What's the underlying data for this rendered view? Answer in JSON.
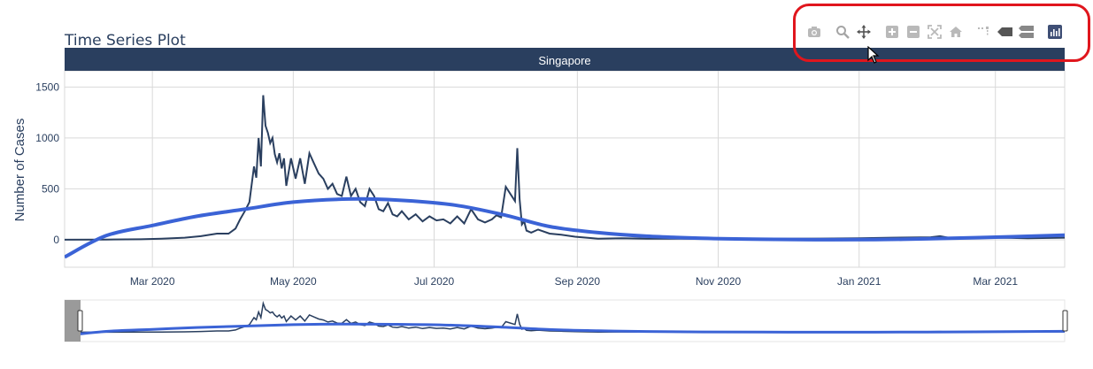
{
  "title": "Time Series Plot",
  "facet_label": "Singapore",
  "colors": {
    "line": "#2a3f5f",
    "trend": "#3b63d6",
    "strip_bg": "#2a3f5f",
    "grid": "#d9d9d9",
    "highlight": "#e0161d"
  },
  "modebar": {
    "buttons": [
      {
        "name": "camera-icon"
      },
      {
        "name": "zoom-icon"
      },
      {
        "name": "pan-icon"
      },
      {
        "name": "zoom-in-icon"
      },
      {
        "name": "zoom-out-icon"
      },
      {
        "name": "autoscale-icon"
      },
      {
        "name": "home-icon"
      },
      {
        "name": "spike-lines-icon"
      },
      {
        "name": "hover-closest-icon"
      },
      {
        "name": "hover-compare-icon"
      },
      {
        "name": "plotly-logo-icon"
      }
    ]
  },
  "chart_data": {
    "type": "line",
    "title": "Time Series Plot",
    "xlabel": "",
    "ylabel": "Number of Cases",
    "xlim": [
      "2020-01-23",
      "2021-03-31"
    ],
    "ylim": [
      -270,
      1660
    ],
    "x_ticks": [
      {
        "date": "2020-03-01",
        "label": "Mar 2020"
      },
      {
        "date": "2020-05-01",
        "label": "May 2020"
      },
      {
        "date": "2020-07-01",
        "label": "Jul 2020"
      },
      {
        "date": "2020-09-01",
        "label": "Sep 2020"
      },
      {
        "date": "2020-11-01",
        "label": "Nov 2020"
      },
      {
        "date": "2021-01-01",
        "label": "Jan 2021"
      },
      {
        "date": "2021-03-01",
        "label": "Mar 2021"
      }
    ],
    "y_ticks": [
      0,
      500,
      1000,
      1500
    ],
    "grid": true,
    "range_slider": true,
    "series": [
      {
        "kind": "observed",
        "x": [
          "2020-01-23",
          "2020-02-10",
          "2020-02-25",
          "2020-03-05",
          "2020-03-15",
          "2020-03-22",
          "2020-03-29",
          "2020-04-03",
          "2020-04-06",
          "2020-04-08",
          "2020-04-10",
          "2020-04-12",
          "2020-04-14",
          "2020-04-15",
          "2020-04-16",
          "2020-04-17",
          "2020-04-18",
          "2020-04-19",
          "2020-04-20",
          "2020-04-21",
          "2020-04-22",
          "2020-04-23",
          "2020-04-24",
          "2020-04-25",
          "2020-04-26",
          "2020-04-27",
          "2020-04-28",
          "2020-04-30",
          "2020-05-02",
          "2020-05-04",
          "2020-05-06",
          "2020-05-08",
          "2020-05-10",
          "2020-05-12",
          "2020-05-14",
          "2020-05-16",
          "2020-05-18",
          "2020-05-20",
          "2020-05-22",
          "2020-05-24",
          "2020-05-26",
          "2020-05-28",
          "2020-05-30",
          "2020-06-01",
          "2020-06-03",
          "2020-06-05",
          "2020-06-07",
          "2020-06-09",
          "2020-06-11",
          "2020-06-13",
          "2020-06-15",
          "2020-06-17",
          "2020-06-20",
          "2020-06-23",
          "2020-06-26",
          "2020-06-29",
          "2020-07-02",
          "2020-07-05",
          "2020-07-08",
          "2020-07-11",
          "2020-07-14",
          "2020-07-17",
          "2020-07-20",
          "2020-07-23",
          "2020-07-26",
          "2020-07-28",
          "2020-07-30",
          "2020-08-01",
          "2020-08-03",
          "2020-08-05",
          "2020-08-06",
          "2020-08-07",
          "2020-08-08",
          "2020-08-09",
          "2020-08-10",
          "2020-08-12",
          "2020-08-15",
          "2020-08-20",
          "2020-08-25",
          "2020-08-31",
          "2020-09-05",
          "2020-09-10",
          "2020-09-20",
          "2020-10-01",
          "2020-10-15",
          "2020-11-01",
          "2020-11-15",
          "2020-12-01",
          "2020-12-15",
          "2021-01-01",
          "2021-01-15",
          "2021-02-01",
          "2021-02-05",
          "2021-02-10",
          "2021-02-15",
          "2021-03-01",
          "2021-03-15",
          "2021-03-31"
        ],
        "y": [
          0,
          2,
          5,
          10,
          20,
          35,
          60,
          60,
          110,
          200,
          280,
          370,
          720,
          610,
          1000,
          720,
          1420,
          1120,
          1050,
          950,
          1000,
          840,
          760,
          850,
          700,
          800,
          530,
          800,
          600,
          800,
          550,
          850,
          750,
          650,
          600,
          500,
          550,
          450,
          430,
          620,
          430,
          500,
          370,
          330,
          500,
          430,
          300,
          280,
          360,
          250,
          230,
          280,
          200,
          250,
          180,
          230,
          190,
          200,
          160,
          230,
          160,
          300,
          200,
          170,
          200,
          240,
          220,
          520,
          450,
          380,
          900,
          400,
          150,
          180,
          90,
          70,
          100,
          60,
          50,
          30,
          20,
          10,
          15,
          10,
          10,
          8,
          10,
          10,
          12,
          15,
          20,
          25,
          35,
          15,
          20,
          20,
          15,
          20
        ]
      },
      {
        "kind": "trend",
        "x": [
          "2020-01-23",
          "2020-02-10",
          "2020-03-01",
          "2020-03-20",
          "2020-04-10",
          "2020-05-01",
          "2020-05-25",
          "2020-06-15",
          "2020-07-10",
          "2020-08-01",
          "2020-08-20",
          "2020-09-10",
          "2020-10-01",
          "2020-10-25",
          "2020-11-20",
          "2020-12-20",
          "2021-01-20",
          "2021-02-20",
          "2021-03-31"
        ],
        "y": [
          -170,
          40,
          140,
          230,
          300,
          370,
          400,
          390,
          340,
          240,
          130,
          70,
          35,
          15,
          5,
          0,
          5,
          20,
          45
        ]
      }
    ]
  }
}
